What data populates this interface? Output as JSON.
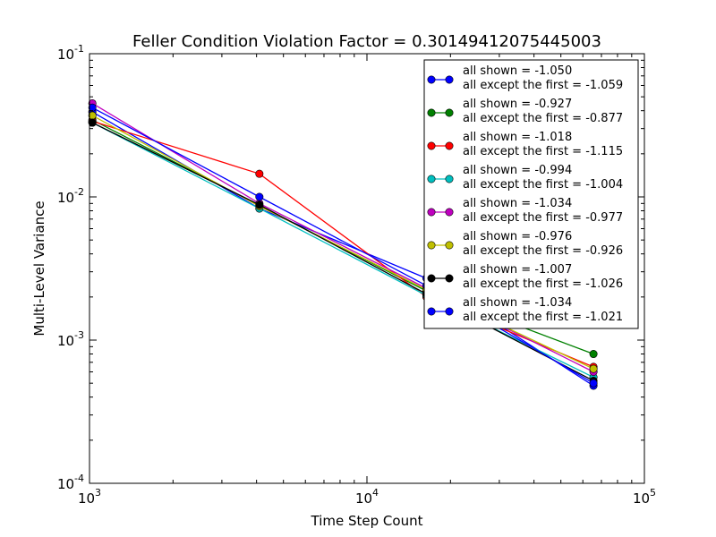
{
  "chart_data": {
    "type": "line",
    "title": "Feller Condition Violation Factor = 0.30149412075445003",
    "xlabel": "Time Step Count",
    "ylabel": "Multi-Level Variance",
    "xscale": "log",
    "yscale": "log",
    "xlim": [
      1000,
      100000
    ],
    "ylim": [
      0.0001,
      0.1
    ],
    "xticks": [
      {
        "value": 1000,
        "base": "10",
        "exp": "3"
      },
      {
        "value": 10000,
        "base": "10",
        "exp": "4"
      },
      {
        "value": 100000,
        "base": "10",
        "exp": "5"
      }
    ],
    "yticks": [
      {
        "value": 0.0001,
        "base": "10",
        "exp": "-4"
      },
      {
        "value": 0.001,
        "base": "10",
        "exp": "-3"
      },
      {
        "value": 0.01,
        "base": "10",
        "exp": "-2"
      },
      {
        "value": 0.1,
        "base": "10",
        "exp": "-1"
      }
    ],
    "x": [
      1024,
      4096,
      16384,
      65536
    ],
    "legend_position": "top-right",
    "series": [
      {
        "label1": "all shown = -1.050",
        "label2": "all except the first = -1.059",
        "color": "#0000ff",
        "values": [
          0.0392,
          0.0083,
          0.0027,
          0.00048
        ]
      },
      {
        "label1": "all shown = -0.927",
        "label2": "all except the first = -0.877",
        "color": "#008000",
        "values": [
          0.0345,
          0.0087,
          0.0022,
          0.0008
        ]
      },
      {
        "label1": "all shown = -1.018",
        "label2": "all except the first = -1.115",
        "color": "#ff0000",
        "values": [
          0.0338,
          0.0145,
          0.002,
          0.00065
        ]
      },
      {
        "label1": "all shown = -0.994",
        "label2": "all except the first = -1.004",
        "color": "#00bfbf",
        "values": [
          0.033,
          0.0083,
          0.00205,
          0.00055
        ]
      },
      {
        "label1": "all shown = -1.034",
        "label2": "all except the first = -0.977",
        "color": "#bf00bf",
        "values": [
          0.045,
          0.009,
          0.0023,
          0.0006
        ]
      },
      {
        "label1": "all shown = -0.976",
        "label2": "all except the first = -0.926",
        "color": "#bfbf00",
        "values": [
          0.037,
          0.0086,
          0.00225,
          0.00063
        ]
      },
      {
        "label1": "all shown = -1.007",
        "label2": "all except the first = -1.026",
        "color": "#000000",
        "values": [
          0.033,
          0.0088,
          0.0021,
          0.00052
        ]
      },
      {
        "label1": "all shown = -1.034",
        "label2": "all except the first = -1.021",
        "color": "#0000ff",
        "values": [
          0.042,
          0.01,
          0.0024,
          0.0005
        ]
      }
    ]
  }
}
